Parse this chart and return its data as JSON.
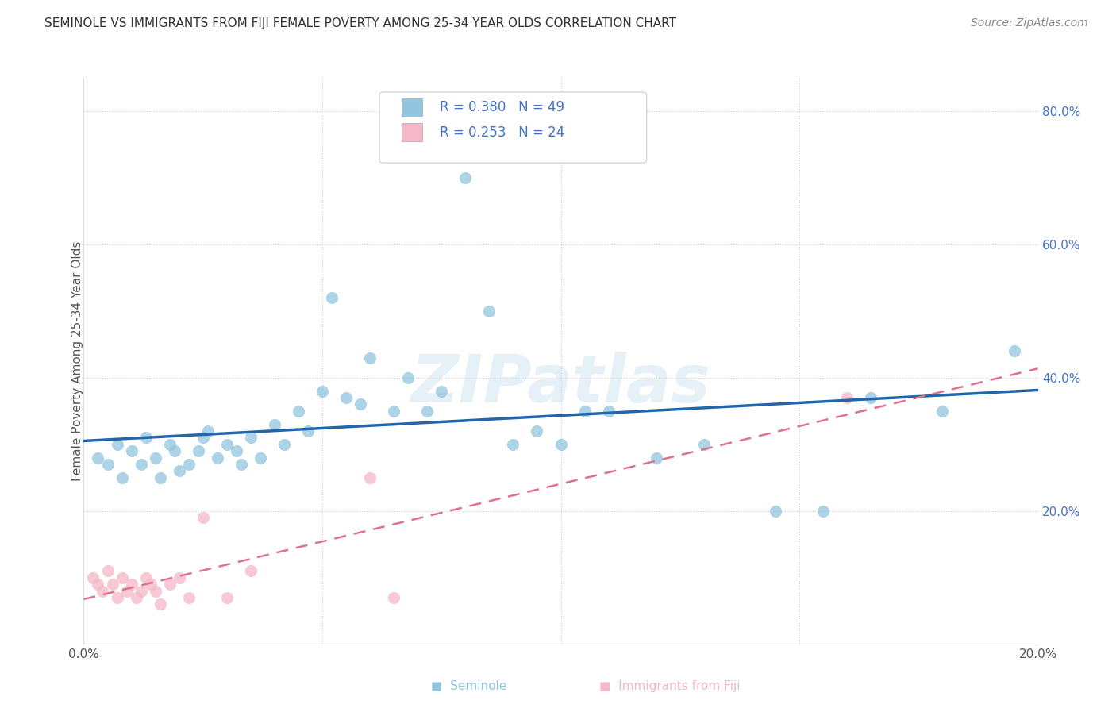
{
  "title": "SEMINOLE VS IMMIGRANTS FROM FIJI FEMALE POVERTY AMONG 25-34 YEAR OLDS CORRELATION CHART",
  "source": "Source: ZipAtlas.com",
  "ylabel": "Female Poverty Among 25-34 Year Olds",
  "xlim": [
    0.0,
    0.2
  ],
  "ylim": [
    0.0,
    0.85
  ],
  "seminole_R": 0.38,
  "seminole_N": 49,
  "fiji_R": 0.253,
  "fiji_N": 24,
  "seminole_color": "#92c5de",
  "fiji_color": "#f4b8c8",
  "seminole_line_color": "#2166ac",
  "fiji_line_color": "#e07090",
  "watermark": "ZIPatlas",
  "seminole_x": [
    0.003,
    0.005,
    0.007,
    0.008,
    0.01,
    0.012,
    0.013,
    0.015,
    0.016,
    0.018,
    0.019,
    0.02,
    0.022,
    0.024,
    0.025,
    0.026,
    0.028,
    0.03,
    0.032,
    0.033,
    0.035,
    0.037,
    0.04,
    0.042,
    0.045,
    0.047,
    0.05,
    0.052,
    0.055,
    0.058,
    0.06,
    0.065,
    0.068,
    0.072,
    0.075,
    0.08,
    0.085,
    0.09,
    0.095,
    0.1,
    0.105,
    0.11,
    0.12,
    0.13,
    0.145,
    0.155,
    0.165,
    0.18,
    0.195
  ],
  "seminole_y": [
    0.28,
    0.27,
    0.3,
    0.25,
    0.29,
    0.27,
    0.31,
    0.28,
    0.25,
    0.3,
    0.29,
    0.26,
    0.27,
    0.29,
    0.31,
    0.32,
    0.28,
    0.3,
    0.29,
    0.27,
    0.31,
    0.28,
    0.33,
    0.3,
    0.35,
    0.32,
    0.38,
    0.52,
    0.37,
    0.36,
    0.43,
    0.35,
    0.4,
    0.35,
    0.38,
    0.7,
    0.5,
    0.3,
    0.32,
    0.3,
    0.35,
    0.35,
    0.28,
    0.3,
    0.2,
    0.2,
    0.37,
    0.35,
    0.44
  ],
  "fiji_x": [
    0.002,
    0.003,
    0.004,
    0.005,
    0.006,
    0.007,
    0.008,
    0.009,
    0.01,
    0.011,
    0.012,
    0.013,
    0.014,
    0.015,
    0.016,
    0.018,
    0.02,
    0.022,
    0.025,
    0.03,
    0.035,
    0.06,
    0.065,
    0.16
  ],
  "fiji_y": [
    0.1,
    0.09,
    0.08,
    0.11,
    0.09,
    0.07,
    0.1,
    0.08,
    0.09,
    0.07,
    0.08,
    0.1,
    0.09,
    0.08,
    0.06,
    0.09,
    0.1,
    0.07,
    0.19,
    0.07,
    0.11,
    0.25,
    0.07,
    0.37
  ]
}
